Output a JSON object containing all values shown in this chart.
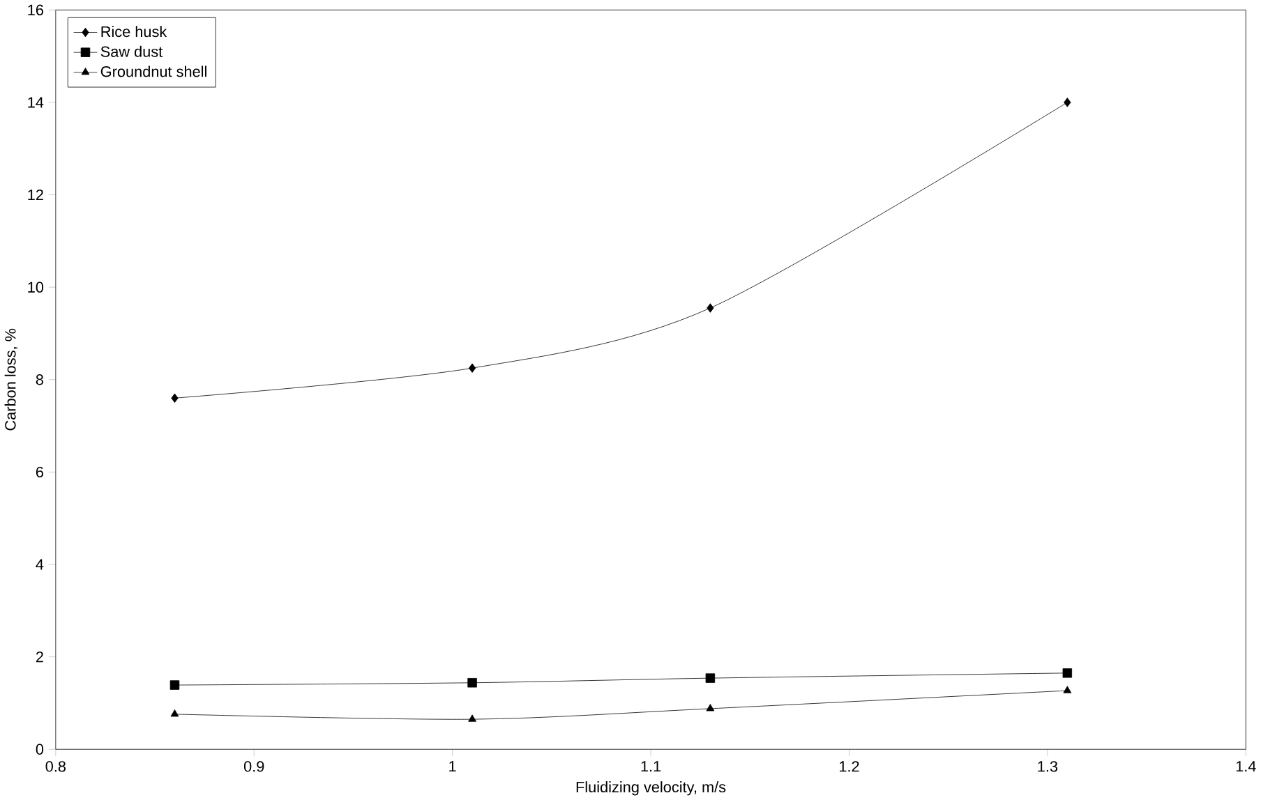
{
  "chart_data": {
    "type": "line",
    "xlabel": "Fluidizing velocity, m/s",
    "ylabel": "Carbon loss, %",
    "x": [
      0.86,
      1.01,
      1.13,
      1.31
    ],
    "series": [
      {
        "name": "Rice husk",
        "color": "#000000",
        "marker": "diamond",
        "values": [
          7.6,
          8.25,
          9.55,
          14.0
        ]
      },
      {
        "name": "Saw  dust",
        "color": "#000000",
        "marker": "square",
        "values": [
          1.39,
          1.44,
          1.54,
          1.65
        ]
      },
      {
        "name": "Groundnut shell",
        "color": "#000000",
        "marker": "triangle",
        "values": [
          0.76,
          0.65,
          0.88,
          1.27
        ]
      }
    ],
    "xlim": [
      0.8,
      1.4
    ],
    "xticks": [
      0.8,
      0.9,
      1,
      1.1,
      1.2,
      1.3,
      1.4
    ],
    "ylim": [
      0,
      16
    ],
    "yticks": [
      0,
      2,
      4,
      6,
      8,
      10,
      12,
      14,
      16
    ],
    "grid": false,
    "legend": "top left",
    "line_style": "solid"
  }
}
